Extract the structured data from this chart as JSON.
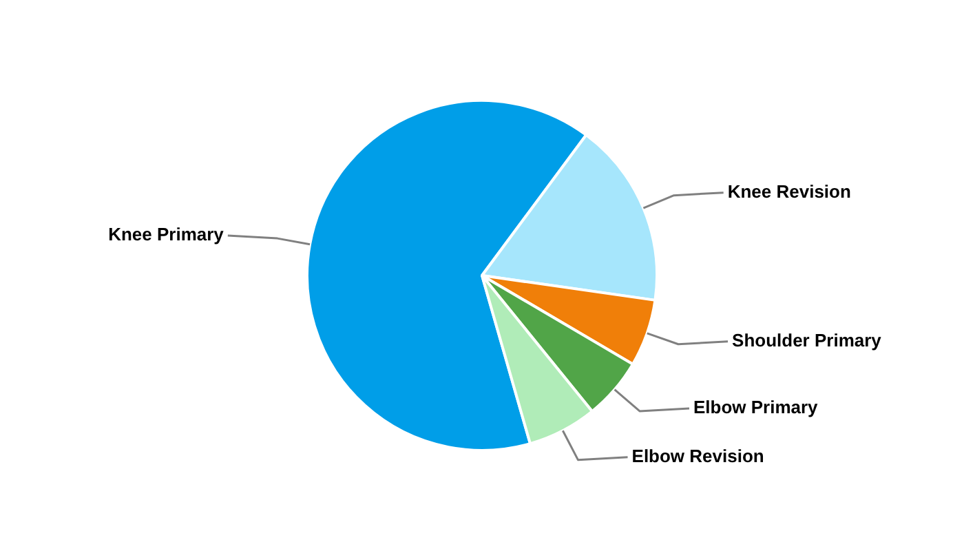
{
  "chart_data": {
    "type": "pie",
    "categories": [
      "Knee Primary",
      "Knee Revision",
      "Shoulder Primary",
      "Elbow Primary",
      "Elbow Revision"
    ],
    "values": [
      64.6,
      17.1,
      6.2,
      5.7,
      6.4
    ],
    "colors": [
      "#009ee8",
      "#a6e6fc",
      "#f07f09",
      "#51a548",
      "#b0ecb8"
    ]
  }
}
